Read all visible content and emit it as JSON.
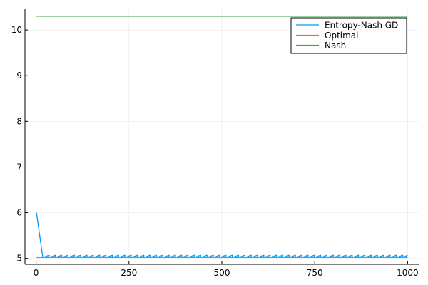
{
  "chart_data": {
    "type": "line",
    "title": "",
    "xlabel": "",
    "ylabel": "",
    "xlim": [
      -30,
      1030
    ],
    "ylim": [
      4.87,
      10.47
    ],
    "xticks": [
      0,
      250,
      500,
      750,
      1000
    ],
    "xtick_labels": [
      "0",
      "250",
      "500",
      "750",
      "1000"
    ],
    "yticks": [
      5,
      6,
      7,
      8,
      9,
      10
    ],
    "ytick_labels": [
      "5",
      "6",
      "7",
      "8",
      "9",
      "10"
    ],
    "grid": true,
    "legend_position": "top-right",
    "series": [
      {
        "name": "Entropy-Nash GD",
        "color": "#009AFA",
        "pattern": "sawtooth",
        "start": [
          1,
          6.0
        ],
        "first_drop_x": 18,
        "period": 17,
        "low": 5.02,
        "high": 5.07,
        "x_end": 1000
      },
      {
        "name": "Optimal",
        "color": "#E26F46",
        "x": [
          1,
          1000
        ],
        "y": [
          5.02,
          5.02
        ]
      },
      {
        "name": "Nash",
        "color": "#3EA44E",
        "x": [
          1,
          1000
        ],
        "y": [
          10.3,
          10.3
        ]
      }
    ]
  }
}
